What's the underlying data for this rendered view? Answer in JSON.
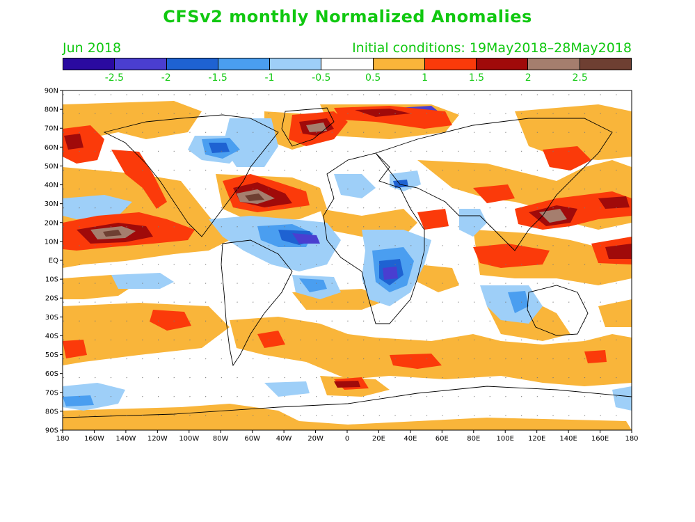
{
  "title": "CFSv2 monthly Normalized Anomalies",
  "month": "Jun 2018",
  "initial_conditions": "Initial conditions: 19May2018–28May2018",
  "colorbar": {
    "colors": [
      "#2a0aa0",
      "#4a3ed0",
      "#1e62d2",
      "#4a9ef0",
      "#9ecff8",
      "#ffffff",
      "#f9b53a",
      "#fb3a0a",
      "#a00a0a",
      "#a57e6e",
      "#6e3f32"
    ],
    "labels": [
      "-2.5",
      "-2",
      "-1.5",
      "-1",
      "-0.5",
      "0.5",
      "1",
      "1.5",
      "2",
      "2.5"
    ]
  },
  "map": {
    "lat_labels": [
      "90N",
      "80N",
      "70N",
      "60N",
      "50N",
      "40N",
      "30N",
      "20N",
      "10N",
      "EQ",
      "10S",
      "20S",
      "30S",
      "40S",
      "50S",
      "60S",
      "70S",
      "80S",
      "90S"
    ],
    "lon_labels": [
      "180",
      "160W",
      "140W",
      "120W",
      "100W",
      "80W",
      "60W",
      "40W",
      "20W",
      "0",
      "20E",
      "40E",
      "60E",
      "80E",
      "100E",
      "120E",
      "140E",
      "160E",
      "180"
    ]
  }
}
